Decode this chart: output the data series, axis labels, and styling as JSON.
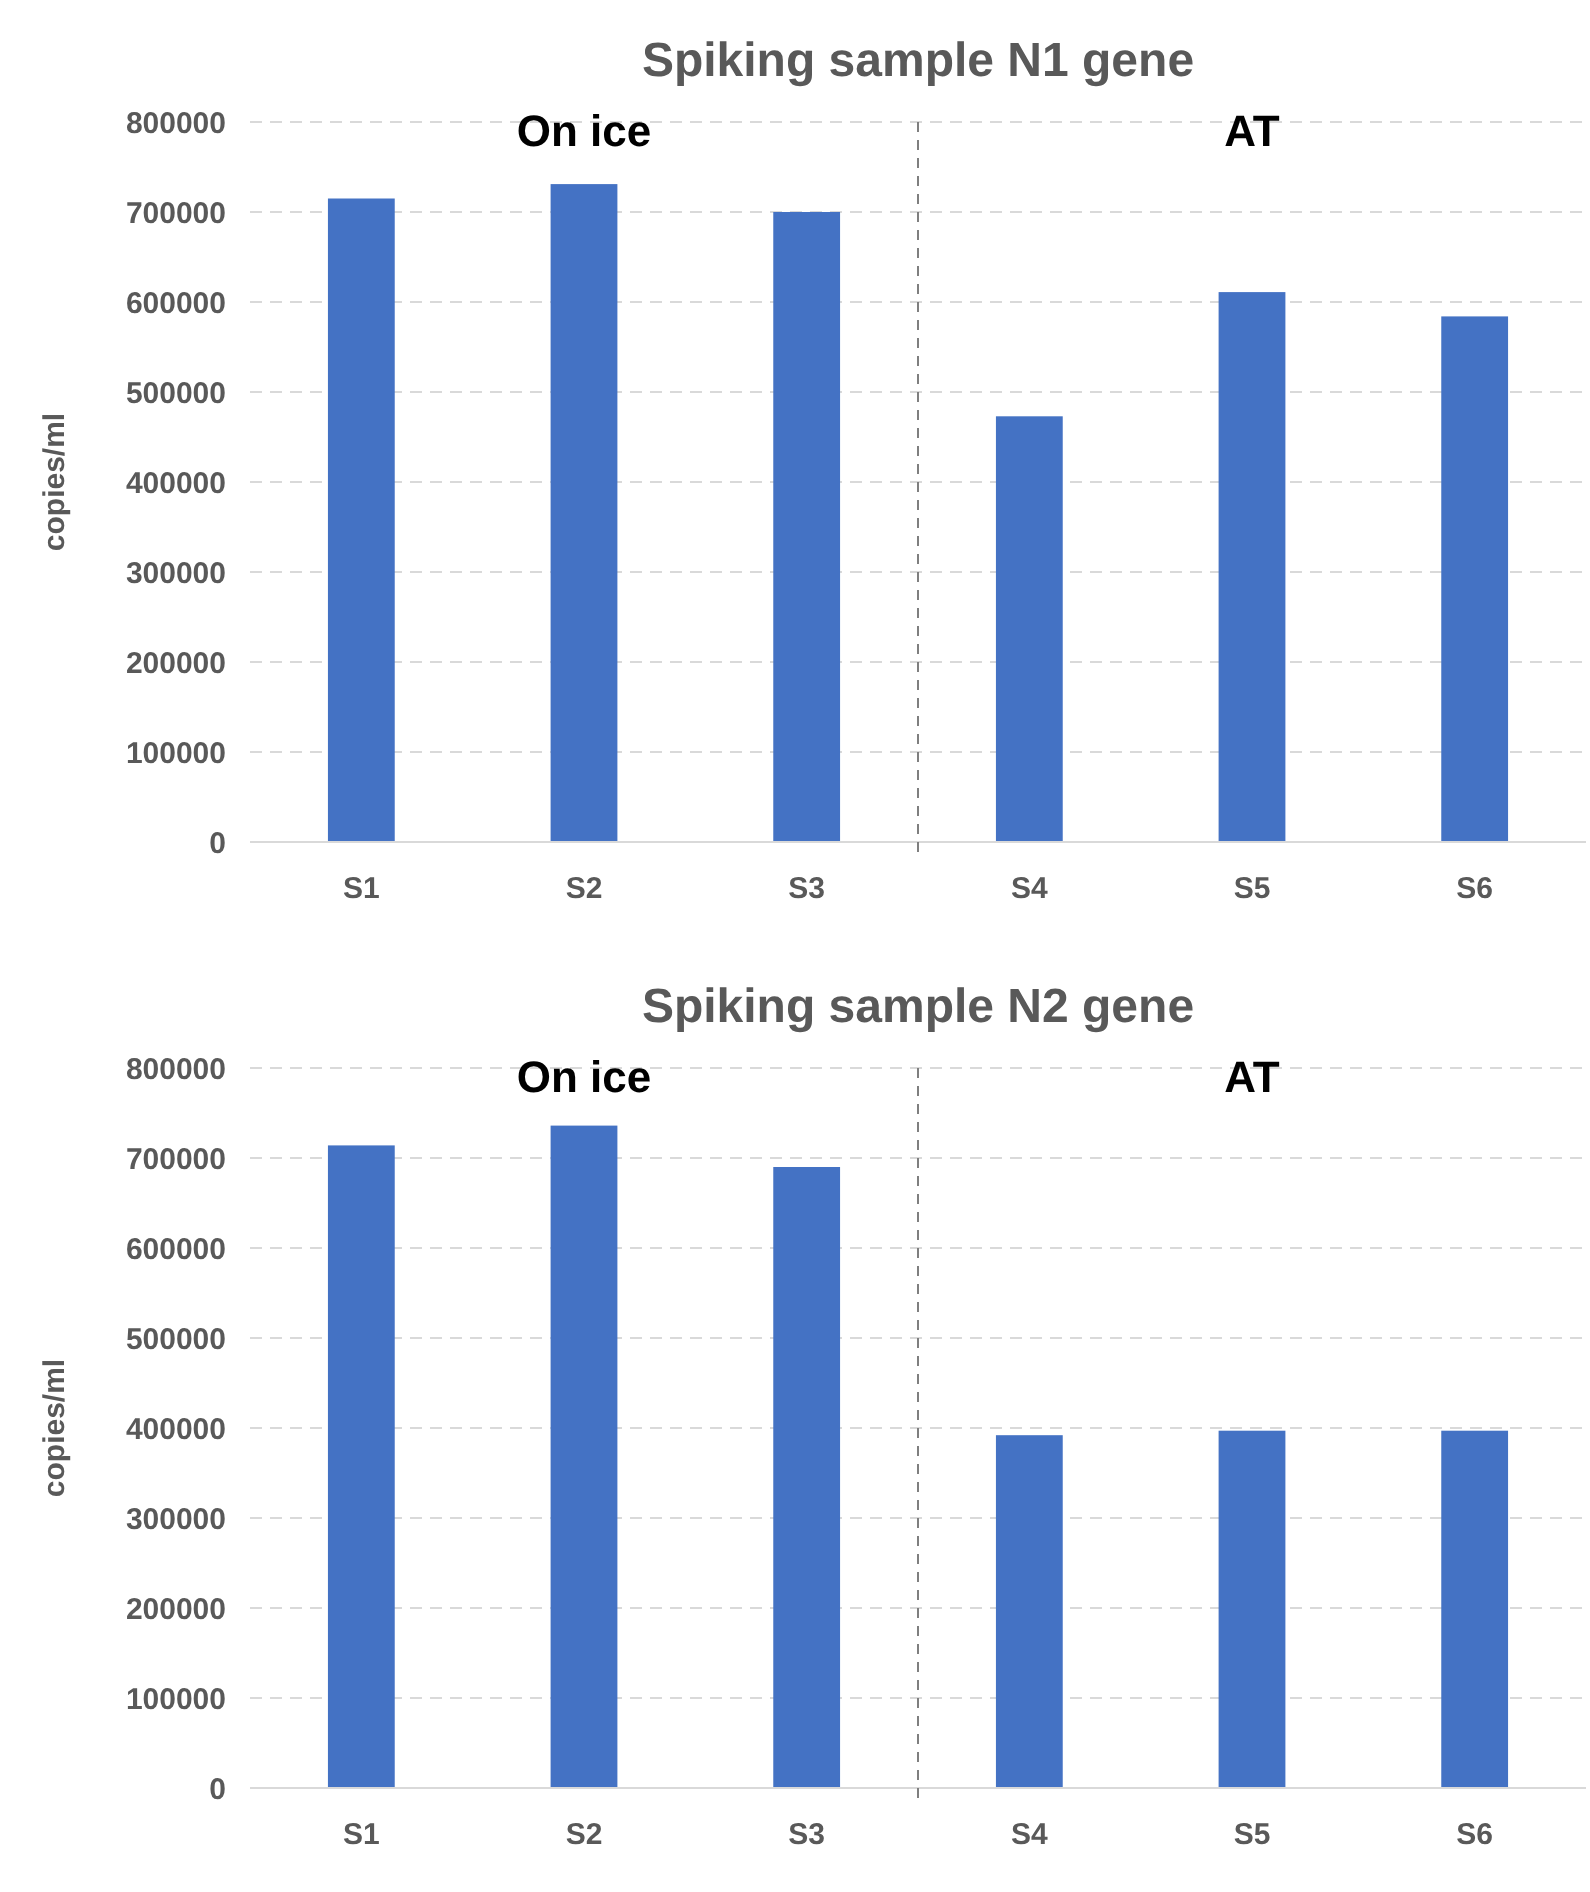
{
  "chart_data": [
    {
      "type": "bar",
      "title": "Spiking sample N1 gene",
      "ylabel": "copies/ml",
      "categories": [
        "S1",
        "S2",
        "S3",
        "S4",
        "S5",
        "S6"
      ],
      "values": [
        715000,
        731000,
        700000,
        473000,
        611000,
        584000
      ],
      "color": "#4472c4",
      "ylim": [
        0,
        800000
      ],
      "yticks": [
        0,
        100000,
        200000,
        300000,
        400000,
        500000,
        600000,
        700000,
        800000
      ],
      "grid": "y",
      "annotations": [
        "On ice",
        "AT"
      ]
    },
    {
      "type": "bar",
      "title": "Spiking sample N2 gene",
      "ylabel": "copies/ml",
      "categories": [
        "S1",
        "S2",
        "S3",
        "S4",
        "S5",
        "S6"
      ],
      "values": [
        714000,
        736000,
        690000,
        392000,
        397000,
        397000
      ],
      "color": "#4472c4",
      "ylim": [
        0,
        800000
      ],
      "yticks": [
        0,
        100000,
        200000,
        300000,
        400000,
        500000,
        600000,
        700000,
        800000
      ],
      "grid": "y",
      "annotations": [
        "On ice",
        "AT"
      ]
    }
  ]
}
